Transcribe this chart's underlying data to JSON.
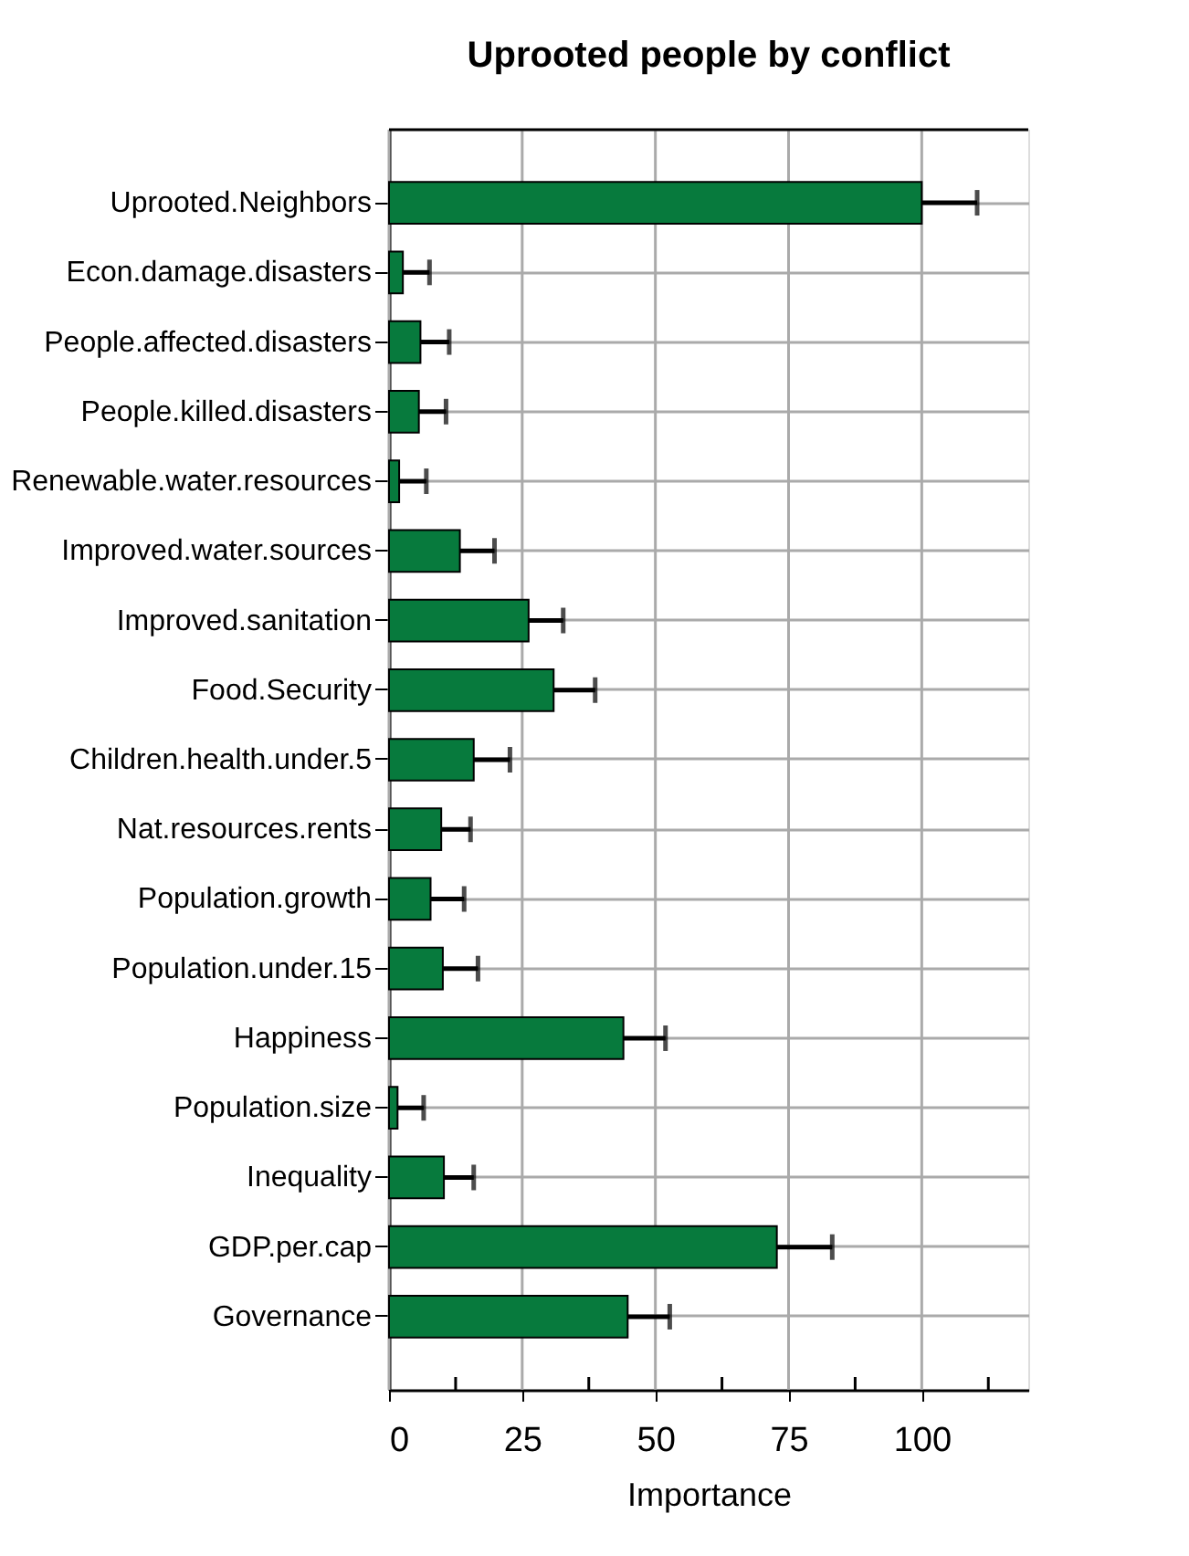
{
  "chart_data": {
    "type": "bar",
    "orientation": "horizontal",
    "title": "Uprooted people by conflict",
    "xlabel": "Importance",
    "categories": [
      "Uprooted.Neighbors",
      "Econ.damage.disasters",
      "People.affected.disasters",
      "People.killed.disasters",
      "Renewable.water.resources",
      "Improved.water.sources",
      "Improved.sanitation",
      "Food.Security",
      "Children.health.under.5",
      "Nat.resources.rents",
      "Population.growth",
      "Population.under.15",
      "Happiness",
      "Population.size",
      "Inequality",
      "GDP.per.cap",
      "Governance"
    ],
    "values": [
      100,
      2.6,
      5.9,
      5.6,
      1.9,
      13.3,
      26.2,
      30.9,
      15.9,
      9.8,
      7.8,
      10.1,
      44.0,
      1.6,
      10.3,
      72.8,
      44.8
    ],
    "errors": [
      10.4,
      5.0,
      5.4,
      5.1,
      5.1,
      6.5,
      6.5,
      7.8,
      6.8,
      5.5,
      6.3,
      6.6,
      7.9,
      4.9,
      5.6,
      10.4,
      7.9
    ],
    "color": "#077a3d",
    "xlim": [
      0,
      120
    ],
    "xticks": [
      0,
      {
        "value": 12.5,
        "label": null
      },
      25,
      {
        "value": 37.5,
        "label": null
      },
      50,
      {
        "value": 62.5,
        "label": null
      },
      75,
      {
        "value": 87.5,
        "label": null
      },
      100,
      {
        "value": 112.5,
        "label": null
      }
    ],
    "grid": true
  }
}
